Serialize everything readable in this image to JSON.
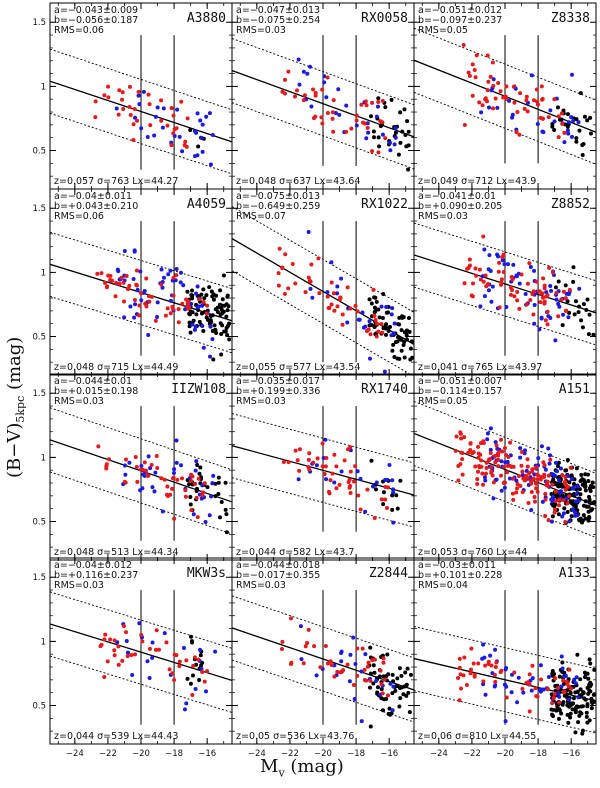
{
  "figure": {
    "ylabel_main": "(B−V)",
    "ylabel_sub": "5kpc",
    "ylabel_unit": " (mag)",
    "xlabel_main": "M",
    "xlabel_sub": "v",
    "xlabel_unit": " (mag)"
  },
  "chart_data": {
    "type": "scatter",
    "grid": false,
    "layout": "4 rows x 3 columns of panels, shared axes",
    "xlim": [
      -25.5,
      -14.5
    ],
    "ylim": [
      0.2,
      1.65
    ],
    "x_ticks": [
      -24,
      -22,
      -20,
      -18,
      -16
    ],
    "x_tick_labels": [
      "−24",
      "−22",
      "−20",
      "−18",
      "−16"
    ],
    "y_ticks": [
      0.5,
      1,
      1.5
    ],
    "y_tick_labels": [
      "0.5",
      "1",
      "1.5"
    ],
    "vertical_lines_x": [
      -20,
      -18
    ],
    "series_colors": {
      "red": "#e8191a",
      "blue": "#1a1ae6",
      "black": "#000000"
    },
    "panels": [
      {
        "name": "A3880",
        "a": "a=−0.043±0.009",
        "b": "b=−0.056±0.187",
        "rms": "RMS=0.06",
        "footer": "z=0.057  σ=763  Lx=44.27",
        "slope": -0.043,
        "intercept": -0.056,
        "rms_val": 0.06,
        "xmin": -22.8,
        "xmax": -16.2,
        "n_red": 35,
        "n_blue": 30,
        "n_black": 4,
        "vline_y": [
          0.35,
          1.4
        ]
      },
      {
        "name": "RX0058",
        "a": "a=−0.047±0.013",
        "b": "b=−0.075±0.254",
        "rms": "RMS=0.03",
        "footer": "z=0.048  σ=637  Lx=43.64",
        "slope": -0.047,
        "intercept": -0.075,
        "rms_val": 0.03,
        "xmin": -22.5,
        "xmax": -14.8,
        "n_red": 40,
        "n_blue": 28,
        "n_black": 30,
        "vline_y": [
          0.38,
          1.4
        ]
      },
      {
        "name": "Z8338",
        "a": "a=−0.051±0.012",
        "b": "b=−0.097±0.237",
        "rms": "RMS=0.05",
        "footer": "z=0.049  σ=712  Lx=43.9",
        "slope": -0.051,
        "intercept": -0.097,
        "rms_val": 0.05,
        "xmin": -22.5,
        "xmax": -14.8,
        "n_red": 55,
        "n_blue": 30,
        "n_black": 25,
        "vline_y": [
          0.4,
          1.4
        ]
      },
      {
        "name": "A4059",
        "a": "a=−0.04±0.011",
        "b": "b=+0.043±0.210",
        "rms": "RMS=0.06",
        "footer": "z=0.048  σ=715  Lx=44.49",
        "slope": -0.04,
        "intercept": 0.043,
        "rms_val": 0.06,
        "xmin": -22.8,
        "xmax": -14.6,
        "n_red": 55,
        "n_blue": 60,
        "n_black": 90,
        "vline_y": [
          0.35,
          1.4
        ]
      },
      {
        "name": "RX1022",
        "a": "a=−0.075±0.013",
        "b": "b=−0.649±0.259",
        "rms": "RMS=0.07",
        "footer": "z=0.055  σ=577  Lx=43.54",
        "slope": -0.075,
        "intercept": -0.649,
        "rms_val": 0.07,
        "xmin": -22.8,
        "xmax": -14.6,
        "n_red": 45,
        "n_blue": 25,
        "n_black": 70,
        "vline_y": [
          0.3,
          1.4
        ]
      },
      {
        "name": "Z8852",
        "a": "a=−0.041±0.01",
        "b": "b=+0.090±0.205",
        "rms": "RMS=0.03",
        "footer": "z=0.041  σ=765  Lx=43.97",
        "slope": -0.041,
        "intercept": 0.09,
        "rms_val": 0.03,
        "xmin": -22.5,
        "xmax": -14.6,
        "n_red": 70,
        "n_blue": 60,
        "n_black": 20,
        "vline_y": [
          0.35,
          1.4
        ]
      },
      {
        "name": "IIZW108",
        "a": "a=−0.044±0.01",
        "b": "b=+0.015±0.198",
        "rms": "RMS=0.03",
        "footer": "z=0.048  σ=513  Lx=44.34",
        "slope": -0.044,
        "intercept": 0.015,
        "rms_val": 0.03,
        "xmin": -22.8,
        "xmax": -14.8,
        "n_red": 45,
        "n_blue": 35,
        "n_black": 30,
        "vline_y": [
          0.35,
          1.4
        ]
      },
      {
        "name": "RX1740",
        "a": "a=−0.035±0.017",
        "b": "b=+0.199±0.336",
        "rms": "RMS=0.03",
        "footer": "z=0.044  σ=582  Lx=43.7",
        "slope": -0.035,
        "intercept": 0.199,
        "rms_val": 0.03,
        "xmin": -22.5,
        "xmax": -14.8,
        "n_red": 45,
        "n_blue": 22,
        "n_black": 12,
        "vline_y": [
          0.42,
          1.4
        ]
      },
      {
        "name": "A151",
        "a": "a=−0.051±0.007",
        "b": "b=−0.114±0.157",
        "rms": "RMS=0.05",
        "footer": "z=0.053  σ=760  Lx=44",
        "slope": -0.051,
        "intercept": -0.114,
        "rms_val": 0.05,
        "xmin": -23,
        "xmax": -14.6,
        "n_red": 150,
        "n_blue": 90,
        "n_black": 150,
        "vline_y": [
          0.35,
          1.4
        ]
      },
      {
        "name": "MKW3s",
        "a": "a=−0.04±0.012",
        "b": "b=+0.116±0.237",
        "rms": "RMS=0.03",
        "footer": "z=0.044  σ=539  Lx=44.43",
        "slope": -0.04,
        "intercept": 0.116,
        "rms_val": 0.03,
        "xmin": -22.5,
        "xmax": -16.3,
        "n_red": 40,
        "n_blue": 22,
        "n_black": 14,
        "vline_y": [
          0.35,
          1.4
        ]
      },
      {
        "name": "Z2844",
        "a": "a=−0.044±0.018",
        "b": "b=−0.017±0.355",
        "rms": "RMS=0.03",
        "footer": "z=0.05  σ=536  Lx=43.76",
        "slope": -0.044,
        "intercept": -0.017,
        "rms_val": 0.03,
        "xmin": -22.5,
        "xmax": -14.6,
        "n_red": 40,
        "n_blue": 25,
        "n_black": 60,
        "vline_y": [
          0.35,
          1.4
        ]
      },
      {
        "name": "A133",
        "a": "a=−0.03±0.011",
        "b": "b=+0.101±0.228",
        "rms": "RMS=0.04",
        "footer": "z=0.06  σ=810  Lx=44.55",
        "slope": -0.03,
        "intercept": 0.101,
        "rms_val": 0.04,
        "xmin": -23,
        "xmax": -14.6,
        "n_red": 55,
        "n_blue": 45,
        "n_black": 140,
        "vline_y": [
          0.35,
          1.4
        ]
      }
    ]
  }
}
